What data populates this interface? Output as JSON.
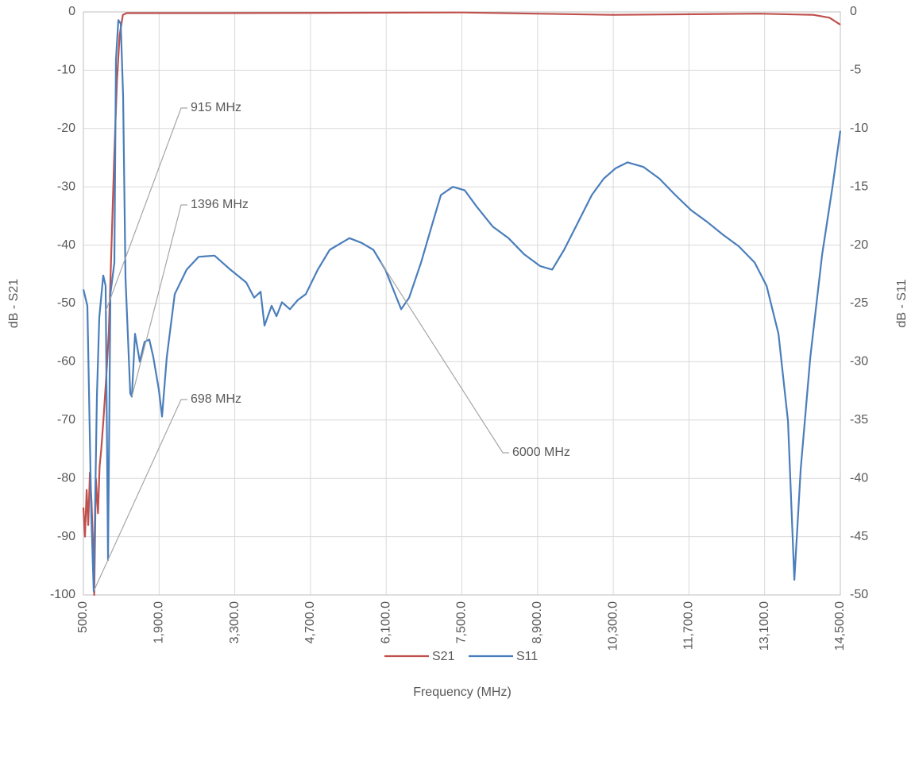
{
  "chart_data": {
    "type": "line",
    "x_label": "Frequency (MHz)",
    "y_label": "dB - S21",
    "y2_label": "dB - S11",
    "xlim": [
      500,
      14500
    ],
    "xticks": [
      {
        "value": 500,
        "label": "500.0"
      },
      {
        "value": 1900,
        "label": "1,900.0"
      },
      {
        "value": 3300,
        "label": "3,300.0"
      },
      {
        "value": 4700,
        "label": "4,700.0"
      },
      {
        "value": 6100,
        "label": "6,100.0"
      },
      {
        "value": 7500,
        "label": "7,500.0"
      },
      {
        "value": 8900,
        "label": "8,900.0"
      },
      {
        "value": 10300,
        "label": "10,300.0"
      },
      {
        "value": 11700,
        "label": "11,700.0"
      },
      {
        "value": 13100,
        "label": "13,100.0"
      },
      {
        "value": 14500,
        "label": "14,500.0"
      }
    ],
    "ylim": [
      -100,
      0
    ],
    "yticks": [
      0,
      -10,
      -20,
      -30,
      -40,
      -50,
      -60,
      -70,
      -80,
      -90,
      -100
    ],
    "y2lim": [
      -50,
      0
    ],
    "y2ticks": [
      0,
      -5,
      -10,
      -15,
      -20,
      -25,
      -30,
      -35,
      -40,
      -45,
      -50
    ],
    "grid": true,
    "legend": "bottom",
    "series": [
      {
        "name": "S21",
        "color": "#c0504d",
        "x": [
          500,
          530,
          560,
          590,
          620,
          650,
          680,
          700,
          730,
          770,
          800,
          830,
          870,
          920,
          970,
          1020,
          1070,
          1120,
          1170,
          1230,
          1300,
          3000,
          7500,
          10300,
          13000,
          14000,
          14300,
          14500
        ],
        "values": [
          -85,
          -90,
          -82,
          -88,
          -79,
          -84,
          -92,
          -100,
          -80,
          -86,
          -78,
          -75,
          -70,
          -63,
          -55,
          -40,
          -25,
          -12,
          -4,
          -0.5,
          -0.2,
          -0.2,
          -0.1,
          -0.5,
          -0.3,
          -0.5,
          -1,
          -2.2
        ]
      },
      {
        "name": "S11",
        "color": "#4a7ebb",
        "axis": "y2",
        "x": [
          500,
          573,
          647,
          691,
          750,
          794,
          867,
          911,
          955,
          999,
          1073,
          1102,
          1146,
          1190,
          1234,
          1279,
          1367,
          1396,
          1455,
          1543,
          1631,
          1719,
          1793,
          1896,
          1954,
          2043,
          2190,
          2410,
          2631,
          2925,
          3218,
          3512,
          3659,
          3777,
          3850,
          3982,
          4071,
          4173,
          4320,
          4467,
          4614,
          4835,
          5055,
          5275,
          5422,
          5643,
          5863,
          6084,
          6231,
          6378,
          6525,
          6745,
          6965,
          7112,
          7333,
          7553,
          7774,
          8068,
          8362,
          8655,
          8949,
          9170,
          9390,
          9610,
          9904,
          10124,
          10345,
          10565,
          10859,
          11153,
          11447,
          11740,
          12034,
          12328,
          12622,
          12916,
          13136,
          13356,
          13532,
          13650,
          13767,
          13944,
          14164,
          14355,
          14500
        ],
        "values": [
          -23.8,
          -25.2,
          -43.3,
          -49.7,
          -33,
          -26.2,
          -22.6,
          -23.5,
          -47,
          -24.2,
          -21.5,
          -4.1,
          -0.7,
          -1,
          -7.2,
          -22.8,
          -32.7,
          -33,
          -27.6,
          -30,
          -28.3,
          -28.1,
          -29.6,
          -32.4,
          -34.7,
          -29.6,
          -24.2,
          -22.1,
          -21,
          -20.9,
          -22.1,
          -23.2,
          -24.5,
          -24,
          -26.9,
          -25.2,
          -26.1,
          -24.9,
          -25.5,
          -24.7,
          -24.2,
          -22.1,
          -20.4,
          -19.8,
          -19.4,
          -19.8,
          -20.4,
          -22.1,
          -23.8,
          -25.5,
          -24.5,
          -21.5,
          -18,
          -15.7,
          -15,
          -15.3,
          -16.7,
          -18.4,
          -19.4,
          -20.8,
          -21.8,
          -22.1,
          -20.4,
          -18.4,
          -15.7,
          -14.3,
          -13.4,
          -12.9,
          -13.3,
          -14.3,
          -15.7,
          -17,
          -18,
          -19.1,
          -20.1,
          -21.5,
          -23.5,
          -27.6,
          -35.1,
          -48.7,
          -39.2,
          -29.6,
          -20.8,
          -15,
          -10.2
        ]
      }
    ],
    "annotations": [
      {
        "text": "915 MHz",
        "x": 915,
        "series": "S11"
      },
      {
        "text": "1396 MHz",
        "x": 1396,
        "series": "S11"
      },
      {
        "text": "698 MHz",
        "x": 698,
        "series": "S21"
      },
      {
        "text": "6000 MHz",
        "x": 6000,
        "series": "S11"
      }
    ]
  }
}
